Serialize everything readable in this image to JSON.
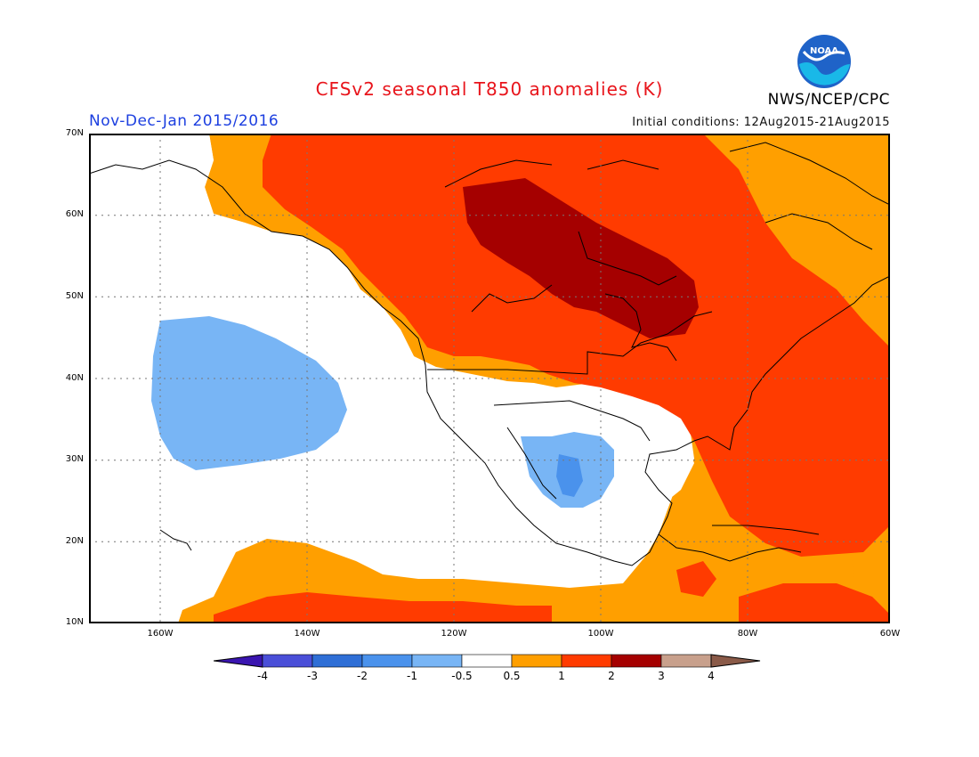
{
  "header": {
    "title": "CFSv2 seasonal T850 anomalies (K)",
    "period": "Nov-Dec-Jan 2015/2016",
    "initial_conditions": "Initial conditions: 12Aug2015-21Aug2015",
    "agency": "NWS/NCEP/CPC",
    "logo_text": "NOAA"
  },
  "map": {
    "lat_labels": [
      "70N",
      "60N",
      "50N",
      "40N",
      "30N",
      "20N",
      "10N"
    ],
    "lon_labels": [
      "160W",
      "140W",
      "120W",
      "100W",
      "80W",
      "60W"
    ]
  },
  "legend": {
    "labels": [
      "-4",
      "-3",
      "-2",
      "-1",
      "-0.5",
      "0.5",
      "1",
      "2",
      "3",
      "4"
    ],
    "colors": [
      "#3a15b0",
      "#4a4fd8",
      "#2f6fd6",
      "#4a92ec",
      "#78b5f5",
      "#ffffff",
      "#ff9f00",
      "#ff3b00",
      "#a50000",
      "#c8a08c",
      "#8a5a48"
    ]
  }
}
